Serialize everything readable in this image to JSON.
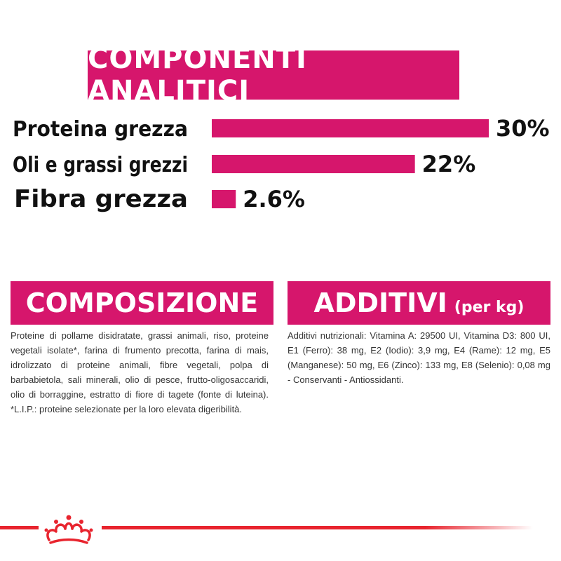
{
  "analytical": {
    "title": "COMPONENTI ANALITICI"
  },
  "chart_data": {
    "type": "bar",
    "orientation": "horizontal",
    "categories": [
      "Proteina grezza",
      "Oli e grassi grezzi",
      "Fibra grezza"
    ],
    "values": [
      30,
      22,
      2.6
    ],
    "value_labels": [
      "30%",
      "22%",
      "2.6%"
    ],
    "unit": "%",
    "bar_color": "#d6166c",
    "title": "COMPONENTI ANALITICI"
  },
  "composition": {
    "title": "COMPOSIZIONE",
    "text": "Proteine di pollame disidratate, grassi animali, riso, proteine vegetali isolate*, farina di frumento precotta, farina di mais, idrolizzato di proteine animali, fibre vegetali, polpa di barbabietola, sali minerali, olio di pesce, frutto-oligosaccaridi, olio di borraggine, estratto di fiore di tagete (fonte di luteina). *L.I.P.: proteine selezionate per la loro elevata digeribilità."
  },
  "additives": {
    "title": "ADDITIVI",
    "unit": "(per kg)",
    "text": "Additivi nutrizionali: Vitamina A: 29500 UI, Vitamina D3: 800 UI, E1 (Ferro): 38 mg, E2 (Iodio): 3,9 mg, E4 (Rame): 12 mg, E5 (Manganese): 50 mg, E6 (Zinco): 133 mg, E8 (Selenio): 0,08 mg - Conservanti - Antiossidanti."
  },
  "colors": {
    "accent": "#d6166c",
    "brand_red": "#e8242e"
  },
  "logo": {
    "icon": "crown-icon"
  }
}
